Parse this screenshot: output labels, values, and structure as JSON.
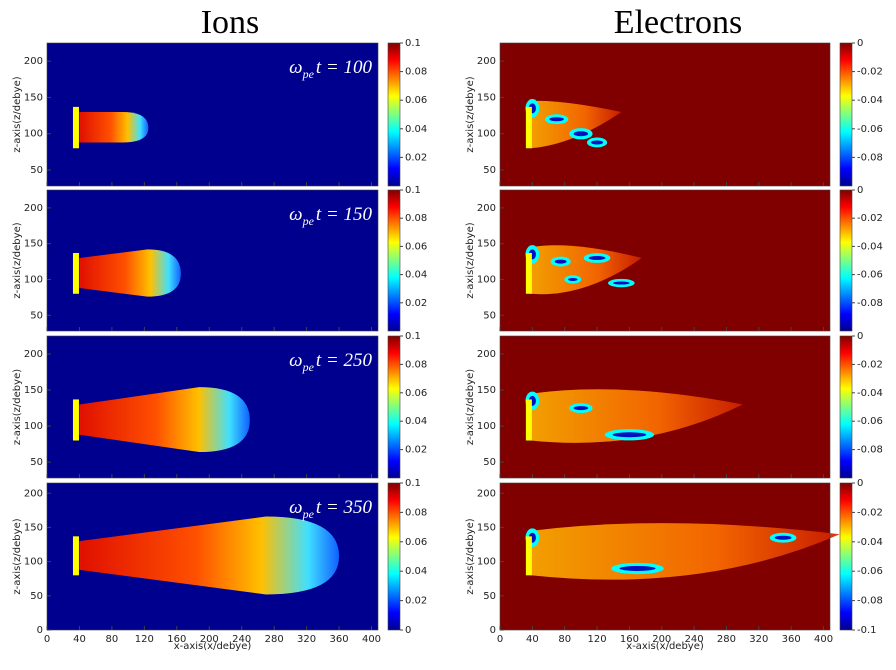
{
  "titles": [
    "Ions",
    "Electrons"
  ],
  "y_axis_label": "z-axis(z/debye)",
  "x_axis_label": "x-axis(x/debye)",
  "xlim": [
    0,
    408
  ],
  "xticks": [
    0,
    40,
    80,
    120,
    160,
    200,
    240,
    280,
    320,
    360,
    400
  ],
  "ion_clim": [
    0,
    0.1
  ],
  "electron_clim": [
    -0.1,
    0
  ],
  "rows": [
    {
      "annotation": {
        "symbol": "ω",
        "subscript": "pe",
        "text": "t = 100"
      },
      "ylim": [
        28,
        225
      ],
      "yticks": [
        50,
        100,
        150,
        200
      ],
      "ion_cticks": [
        0.02,
        0.04,
        0.06,
        0.08,
        0.1
      ],
      "electron_cticks": [
        -0.08,
        -0.06,
        -0.04,
        -0.02,
        0
      ]
    },
    {
      "annotation": {
        "symbol": "ω",
        "subscript": "pe",
        "text": "t = 150"
      },
      "ylim": [
        28,
        225
      ],
      "yticks": [
        50,
        100,
        150,
        200
      ],
      "ion_cticks": [
        0.02,
        0.04,
        0.06,
        0.08,
        0.1
      ],
      "electron_cticks": [
        -0.08,
        -0.06,
        -0.04,
        -0.02,
        0
      ]
    },
    {
      "annotation": {
        "symbol": "ω",
        "subscript": "pe",
        "text": "t = 250"
      },
      "ylim": [
        28,
        225
      ],
      "yticks": [
        50,
        100,
        150,
        200
      ],
      "ion_cticks": [
        0.02,
        0.04,
        0.06,
        0.08,
        0.1
      ],
      "electron_cticks": [
        -0.08,
        -0.06,
        -0.04,
        -0.02,
        0
      ]
    },
    {
      "annotation": {
        "symbol": "ω",
        "subscript": "pe",
        "text": "t = 350"
      },
      "ylim": [
        0,
        215
      ],
      "yticks": [
        0,
        50,
        100,
        150,
        200
      ],
      "ion_cticks": [
        0,
        0.02,
        0.04,
        0.06,
        0.08,
        0.1
      ],
      "electron_cticks": [
        -0.1,
        -0.08,
        -0.06,
        -0.04,
        -0.02,
        0
      ]
    }
  ]
}
